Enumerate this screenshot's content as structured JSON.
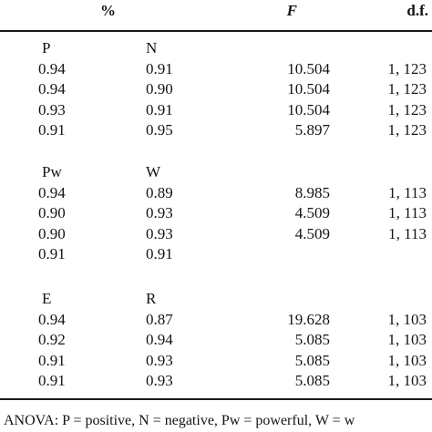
{
  "header": {
    "percent": "%",
    "f": "F",
    "df": "d.f."
  },
  "groups": [
    {
      "label_a": "P",
      "label_b": "N",
      "rows": [
        {
          "a": "0.94",
          "b": "0.91",
          "f": "10.504",
          "df": "1, 123"
        },
        {
          "a": "0.94",
          "b": "0.90",
          "f": "10.504",
          "df": "1, 123"
        },
        {
          "a": "0.93",
          "b": "0.91",
          "f": "10.504",
          "df": "1, 123"
        },
        {
          "a": "0.91",
          "b": "0.95",
          "f": "5.897",
          "df": "1, 123"
        }
      ]
    },
    {
      "label_a": "Pw",
      "label_b": "W",
      "rows": [
        {
          "a": "0.94",
          "b": "0.89",
          "f": "8.985",
          "df": "1, 113"
        },
        {
          "a": "0.90",
          "b": "0.93",
          "f": "4.509",
          "df": "1, 113"
        },
        {
          "a": "0.90",
          "b": "0.93",
          "f": "4.509",
          "df": "1, 113"
        },
        {
          "a": "0.91",
          "b": "0.91",
          "f": "",
          "df": ""
        }
      ]
    },
    {
      "label_a": "E",
      "label_b": "R",
      "rows": [
        {
          "a": "0.94",
          "b": "0.87",
          "f": "19.628",
          "df": "1, 103"
        },
        {
          "a": "0.92",
          "b": "0.94",
          "f": "5.085",
          "df": "1, 103"
        },
        {
          "a": "0.91",
          "b": "0.93",
          "f": "5.085",
          "df": "1, 103"
        },
        {
          "a": "0.91",
          "b": "0.93",
          "f": "5.085",
          "df": "1, 103"
        }
      ]
    }
  ],
  "footnote": "ANOVA: P = positive, N = negative, Pw = powerful, W = w"
}
